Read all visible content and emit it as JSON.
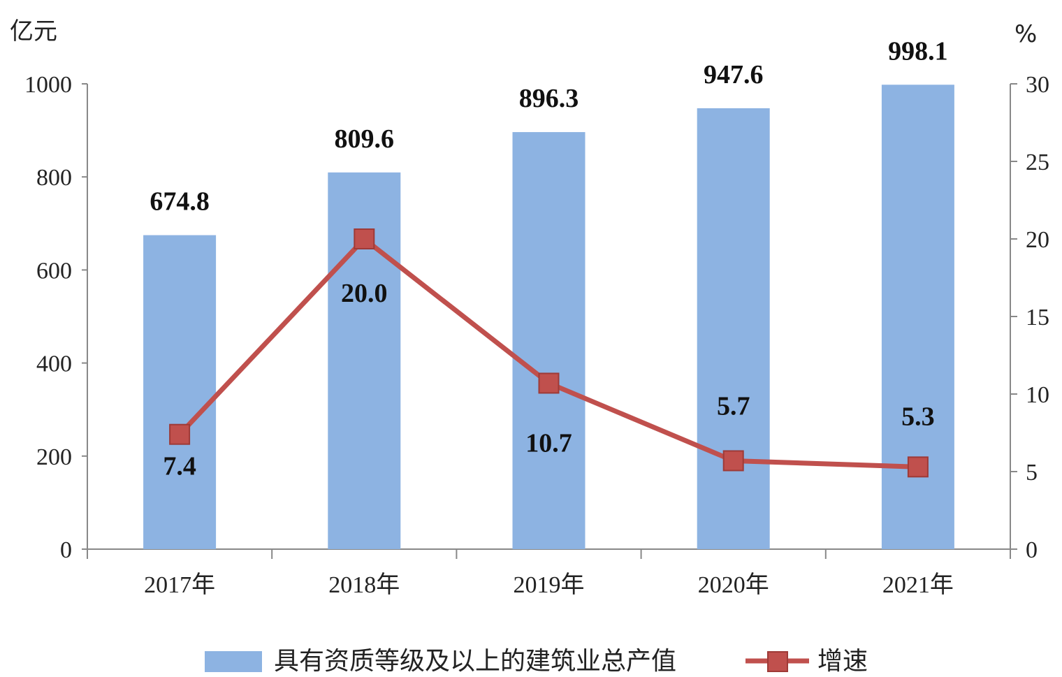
{
  "chart_data": {
    "type": "bar",
    "categories": [
      "2017年",
      "2018年",
      "2019年",
      "2020年",
      "2021年"
    ],
    "series": [
      {
        "name": "具有资质等级及以上的建筑业总产值",
        "type": "bar",
        "axis": "left",
        "values": [
          674.8,
          809.6,
          896.3,
          947.6,
          998.1
        ],
        "labels": [
          "674.8",
          "809.6",
          "896.3",
          "947.6",
          "998.1"
        ],
        "color": "#8DB3E2"
      },
      {
        "name": "增速",
        "type": "line",
        "axis": "right",
        "values": [
          7.4,
          20.0,
          10.7,
          5.7,
          5.3
        ],
        "labels": [
          "7.4",
          "20.0",
          "10.7",
          "5.7",
          "5.3"
        ],
        "color": "#C0504D"
      }
    ],
    "y_left": {
      "unit": "亿元",
      "ylim": [
        0,
        1000
      ],
      "ticks": [
        0,
        200,
        400,
        600,
        800,
        1000
      ]
    },
    "y_right": {
      "unit": "%",
      "ylim": [
        0,
        30
      ],
      "ticks": [
        0,
        5,
        10,
        15,
        20,
        25,
        30
      ]
    },
    "grid": false,
    "legend_position": "bottom"
  }
}
